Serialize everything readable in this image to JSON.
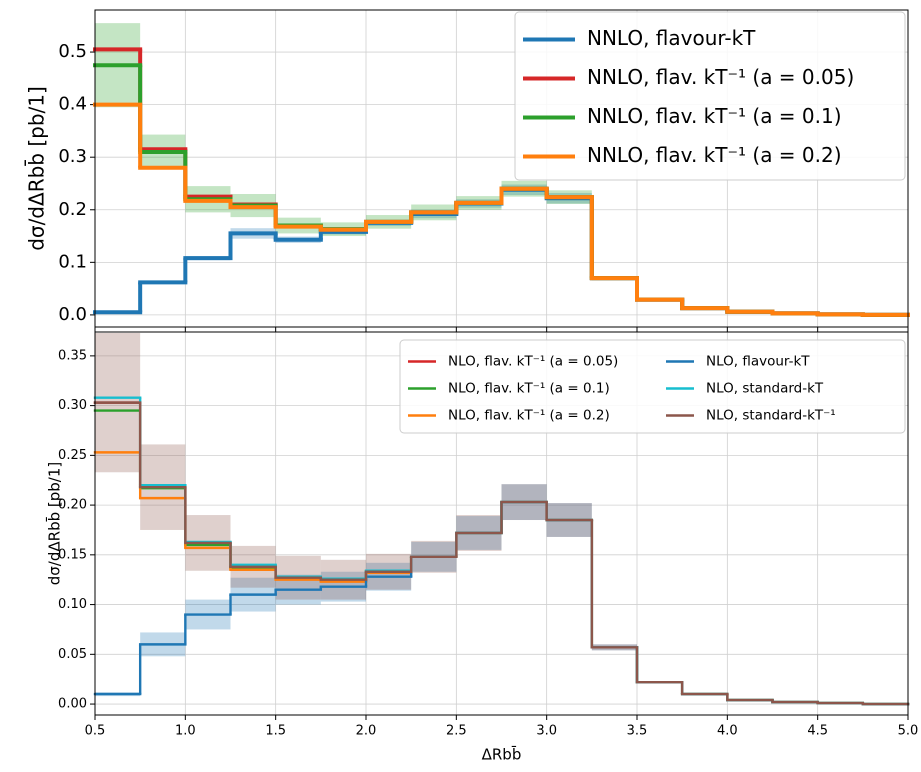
{
  "chart_data": [
    {
      "type": "histogram",
      "sharex": true,
      "grid": true,
      "legend": "upper right",
      "legend_ncol": 1,
      "ylabel": "dσ/dΔRbb̄  [pb/1]",
      "bins": [
        0.5,
        0.75,
        1.0,
        1.25,
        1.5,
        1.75,
        2.0,
        2.25,
        2.5,
        2.75,
        3.0,
        3.25,
        3.5,
        3.75,
        4.0,
        4.25,
        4.5,
        4.75,
        5.0
      ],
      "xlim": [
        0.5,
        5.0
      ],
      "ylim": [
        -0.023,
        0.58
      ],
      "xticks": [
        0.5,
        1,
        1.5,
        2,
        2.5,
        3,
        3.5,
        4,
        4.5,
        5
      ],
      "yticks": [
        {
          "value": 0,
          "label": "0.0"
        },
        0.1,
        0.2,
        0.3,
        0.4,
        0.5
      ],
      "series": [
        {
          "name": "NNLO, flavour-kT",
          "color": "#1f77b4",
          "values": [
            0.005,
            0.062,
            0.108,
            0.155,
            0.143,
            0.158,
            0.175,
            0.192,
            0.212,
            0.238,
            0.222,
            0.07,
            0.029,
            0.013,
            0.006,
            0.003,
            0.001,
            0.0
          ],
          "errors": [
            0.001,
            0.003,
            0.004,
            0.01,
            0.006,
            0.005,
            0.006,
            0.008,
            0.008,
            0.01,
            0.01,
            0.004,
            0.002,
            0.001,
            0,
            0,
            0,
            0
          ]
        },
        {
          "name": "NNLO, flav. kT⁻¹ (a = 0.05)",
          "color": "#d62728",
          "values": [
            0.505,
            0.315,
            0.225,
            0.21,
            0.17,
            0.163,
            0.177,
            0.195,
            0.213,
            0.24,
            0.224,
            0.07,
            0.029,
            0.013,
            0.006,
            0.003,
            0.001,
            0.0
          ]
        },
        {
          "name": "NNLO, flav. kT⁻¹ (a = 0.1)",
          "color": "#2ca02c",
          "values": [
            0.475,
            0.31,
            0.22,
            0.208,
            0.17,
            0.163,
            0.177,
            0.195,
            0.213,
            0.24,
            0.224,
            0.07,
            0.029,
            0.013,
            0.006,
            0.003,
            0.001,
            0.0
          ],
          "errors": [
            0.08,
            0.033,
            0.025,
            0.022,
            0.015,
            0.013,
            0.013,
            0.015,
            0.013,
            0.015,
            0.013,
            0.004,
            0.002,
            0.001,
            0.001,
            0,
            0,
            0
          ]
        },
        {
          "name": "NNLO, flav. kT⁻¹ (a = 0.2)",
          "color": "#ff7f0e",
          "values": [
            0.4,
            0.28,
            0.217,
            0.205,
            0.168,
            0.162,
            0.177,
            0.195,
            0.213,
            0.24,
            0.224,
            0.07,
            0.029,
            0.013,
            0.006,
            0.003,
            0.001,
            0.0
          ]
        }
      ]
    },
    {
      "type": "histogram",
      "grid": true,
      "legend": "upper right",
      "legend_ncol": 2,
      "ylabel": "dσ/dΔRbb̄  [pb/1]",
      "xlabel": "ΔRbb̄",
      "bins": [
        0.5,
        0.75,
        1.0,
        1.25,
        1.5,
        1.75,
        2.0,
        2.25,
        2.5,
        2.75,
        3.0,
        3.25,
        3.5,
        3.75,
        4.0,
        4.25,
        4.5,
        4.75,
        5.0
      ],
      "xlim": [
        0.5,
        5.0
      ],
      "ylim": [
        -0.011,
        0.374
      ],
      "xticks": [
        0.5,
        {
          "value": 1,
          "label": "1.0"
        },
        1.5,
        {
          "value": 2,
          "label": "2.0"
        },
        2.5,
        {
          "value": 3,
          "label": "3.0"
        },
        3.5,
        {
          "value": 4,
          "label": "4.0"
        },
        4.5,
        {
          "value": 5,
          "label": "5.0"
        }
      ],
      "yticks": [
        {
          "value": 0,
          "label": "0.00"
        },
        {
          "value": 0.05,
          "label": "0.05"
        },
        {
          "value": 0.1,
          "label": "0.10"
        },
        {
          "value": 0.15,
          "label": "0.15"
        },
        {
          "value": 0.2,
          "label": "0.20"
        },
        {
          "value": 0.25,
          "label": "0.25"
        },
        {
          "value": 0.3,
          "label": "0.30"
        },
        {
          "value": 0.35,
          "label": "0.35"
        }
      ],
      "series": [
        {
          "name": "NLO, flav. kT⁻¹ (a = 0.05)",
          "color": "#d62728",
          "values": [
            0.303,
            0.218,
            0.162,
            0.138,
            0.127,
            0.125,
            0.133,
            0.148,
            0.172,
            0.203,
            0.185,
            0.057,
            0.022,
            0.01,
            0.004,
            0.002,
            0.001,
            0.0
          ]
        },
        {
          "name": "NLO, flav. kT⁻¹ (a = 0.1)",
          "color": "#2ca02c",
          "values": [
            0.295,
            0.217,
            0.16,
            0.137,
            0.126,
            0.124,
            0.133,
            0.148,
            0.172,
            0.203,
            0.185,
            0.057,
            0.022,
            0.01,
            0.004,
            0.002,
            0.001,
            0.0
          ]
        },
        {
          "name": "NLO, flav. kT⁻¹ (a = 0.2)",
          "color": "#ff7f0e",
          "values": [
            0.253,
            0.207,
            0.157,
            0.135,
            0.125,
            0.123,
            0.132,
            0.148,
            0.172,
            0.203,
            0.185,
            0.057,
            0.022,
            0.01,
            0.004,
            0.002,
            0.001,
            0.0
          ]
        },
        {
          "name": "NLO, flavour-kT",
          "color": "#1f77b4",
          "values": [
            0.01,
            0.06,
            0.09,
            0.11,
            0.115,
            0.118,
            0.128,
            0.148,
            0.172,
            0.203,
            0.185,
            0.057,
            0.022,
            0.01,
            0.004,
            0.002,
            0.001,
            0.0
          ],
          "errors": [
            0.002,
            0.012,
            0.015,
            0.017,
            0.015,
            0.015,
            0.014,
            0.015,
            0.017,
            0.018,
            0.017,
            0.003,
            0.001,
            0,
            0,
            0,
            0,
            0
          ]
        },
        {
          "name": "NLO, standard-kT",
          "color": "#17becf",
          "values": [
            0.308,
            0.22,
            0.163,
            0.14,
            0.128,
            0.126,
            0.134,
            0.148,
            0.172,
            0.203,
            0.185,
            0.057,
            0.022,
            0.01,
            0.004,
            0.002,
            0.001,
            0.0
          ]
        },
        {
          "name": "NLO, standard-kT⁻¹",
          "color": "#8c564b",
          "values": [
            0.303,
            0.218,
            0.162,
            0.138,
            0.127,
            0.125,
            0.133,
            0.148,
            0.172,
            0.203,
            0.185,
            0.057,
            0.022,
            0.01,
            0.004,
            0.002,
            0.001,
            0.0
          ],
          "errors": [
            0.07,
            0.043,
            0.028,
            0.021,
            0.022,
            0.02,
            0.018,
            0.016,
            0.018,
            0.018,
            0.017,
            0.003,
            0.001,
            0,
            0,
            0,
            0,
            0
          ]
        }
      ]
    }
  ]
}
